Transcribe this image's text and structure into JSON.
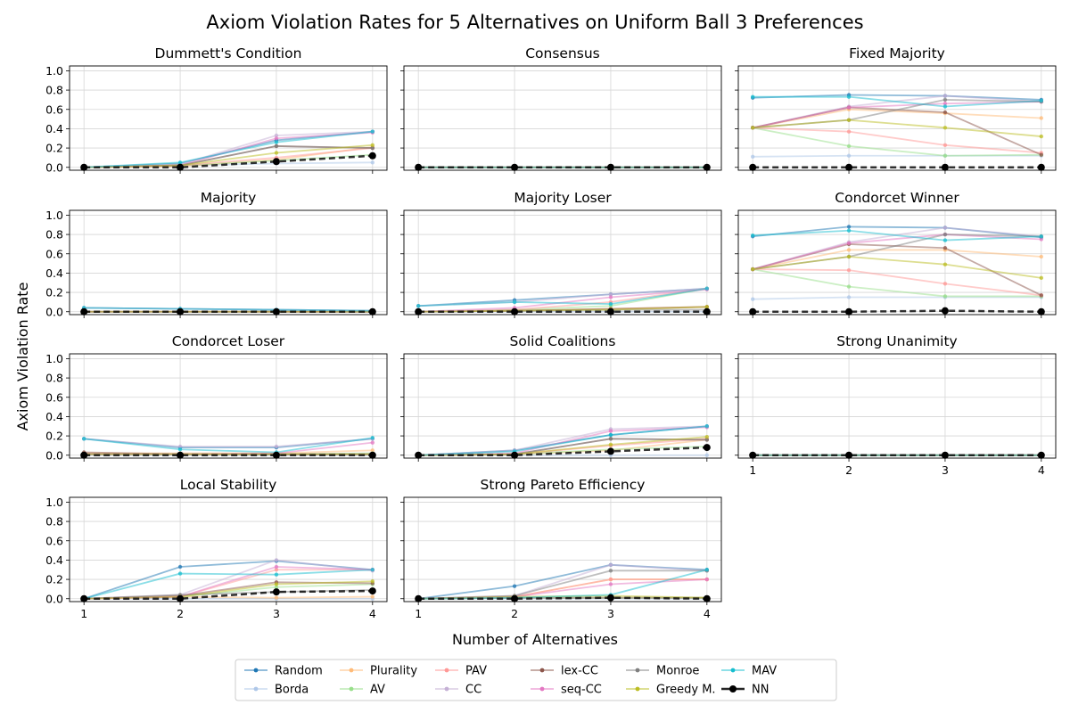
{
  "figure": {
    "title": "Axiom Violation Rates for 5 Alternatives on Uniform Ball 3 Preferences",
    "xlabel": "Number of Alternatives",
    "ylabel": "Axiom Violation Rate"
  },
  "legend": {
    "placement": "bottom-center",
    "entries": [
      {
        "name": "Random",
        "color": "#1f77b4",
        "dashed": false
      },
      {
        "name": "Borda",
        "color": "#aec7e8",
        "dashed": false
      },
      {
        "name": "Plurality",
        "color": "#ffbb78",
        "dashed": false
      },
      {
        "name": "AV",
        "color": "#98df8a",
        "dashed": false
      },
      {
        "name": "PAV",
        "color": "#ff9896",
        "dashed": false
      },
      {
        "name": "CC",
        "color": "#c5b0d5",
        "dashed": false
      },
      {
        "name": "lex-CC",
        "color": "#8c564b",
        "dashed": false
      },
      {
        "name": "seq-CC",
        "color": "#e377c2",
        "dashed": false
      },
      {
        "name": "Monroe",
        "color": "#7f7f7f",
        "dashed": false
      },
      {
        "name": "Greedy M.",
        "color": "#bcbd22",
        "dashed": false
      },
      {
        "name": "MAV",
        "color": "#17becf",
        "dashed": false
      },
      {
        "name": "NN",
        "color": "#000000",
        "dashed": true
      }
    ]
  },
  "chart_data": {
    "type": "line",
    "x": [
      1,
      2,
      3,
      4
    ],
    "xticks": [
      "1",
      "2",
      "3",
      "4"
    ],
    "ylim": [
      -0.03,
      1.05
    ],
    "yticks": [
      "0.0",
      "0.2",
      "0.4",
      "0.6",
      "0.8",
      "1.0"
    ],
    "grid": true,
    "panels": [
      {
        "title": "Dummett's Condition",
        "series": {
          "Random": [
            0.0,
            0.04,
            0.28,
            0.37
          ],
          "Borda": [
            0.0,
            0.02,
            0.04,
            0.05
          ],
          "Plurality": [
            0.0,
            0.01,
            0.08,
            0.21
          ],
          "AV": [
            0.0,
            0.02,
            0.07,
            0.13
          ],
          "PAV": [
            0.0,
            0.02,
            0.1,
            0.2
          ],
          "CC": [
            0.0,
            0.03,
            0.33,
            0.37
          ],
          "lex-CC": [
            0.0,
            0.02,
            0.22,
            0.2
          ],
          "seq-CC": [
            0.0,
            0.02,
            0.3,
            0.36
          ],
          "Monroe": [
            0.0,
            0.02,
            0.22,
            0.2
          ],
          "Greedy M.": [
            0.0,
            0.02,
            0.15,
            0.23
          ],
          "MAV": [
            0.0,
            0.05,
            0.26,
            0.37
          ],
          "NN": [
            0.0,
            0.0,
            0.06,
            0.12
          ]
        }
      },
      {
        "title": "Consensus",
        "series": {
          "Random": [
            0.0,
            0.0,
            0.0,
            0.0
          ],
          "Borda": [
            0.0,
            0.0,
            0.0,
            0.0
          ],
          "Plurality": [
            0.0,
            0.0,
            0.0,
            0.0
          ],
          "AV": [
            0.0,
            0.0,
            0.0,
            0.0
          ],
          "PAV": [
            0.0,
            0.0,
            0.0,
            0.0
          ],
          "CC": [
            0.0,
            0.0,
            0.0,
            0.0
          ],
          "lex-CC": [
            0.0,
            0.0,
            0.0,
            0.0
          ],
          "seq-CC": [
            0.0,
            0.0,
            0.0,
            0.0
          ],
          "Monroe": [
            0.0,
            0.0,
            0.0,
            0.0
          ],
          "Greedy M.": [
            0.0,
            0.0,
            0.0,
            0.0
          ],
          "MAV": [
            0.0,
            0.0,
            0.0,
            0.0
          ],
          "NN": [
            0.0,
            0.0,
            0.0,
            0.0
          ]
        }
      },
      {
        "title": "Fixed Majority",
        "series": {
          "Random": [
            0.72,
            0.75,
            0.74,
            0.7
          ],
          "Borda": [
            0.11,
            0.12,
            0.12,
            0.12
          ],
          "Plurality": [
            0.41,
            0.6,
            0.56,
            0.51
          ],
          "AV": [
            0.41,
            0.22,
            0.12,
            0.13
          ],
          "PAV": [
            0.41,
            0.37,
            0.23,
            0.15
          ],
          "CC": [
            0.41,
            0.63,
            0.74,
            0.68
          ],
          "lex-CC": [
            0.41,
            0.62,
            0.57,
            0.13
          ],
          "seq-CC": [
            0.41,
            0.62,
            0.66,
            0.68
          ],
          "Monroe": [
            0.41,
            0.49,
            0.7,
            0.68
          ],
          "Greedy M.": [
            0.41,
            0.49,
            0.41,
            0.32
          ],
          "MAV": [
            0.73,
            0.73,
            0.63,
            0.69
          ],
          "NN": [
            0.0,
            0.0,
            0.0,
            0.0
          ]
        }
      },
      {
        "title": "Majority",
        "series": {
          "Random": [
            0.04,
            0.03,
            0.02,
            0.01
          ],
          "Borda": [
            0.0,
            0.0,
            0.0,
            0.0
          ],
          "Plurality": [
            0.0,
            0.0,
            0.0,
            0.0
          ],
          "AV": [
            0.0,
            0.0,
            0.0,
            0.0
          ],
          "PAV": [
            0.0,
            0.0,
            0.0,
            0.0
          ],
          "CC": [
            0.04,
            0.03,
            0.02,
            0.01
          ],
          "lex-CC": [
            0.0,
            0.0,
            0.0,
            0.0
          ],
          "seq-CC": [
            0.0,
            0.0,
            0.0,
            0.0
          ],
          "Monroe": [
            0.0,
            0.0,
            0.0,
            0.0
          ],
          "Greedy M.": [
            0.0,
            0.0,
            0.0,
            0.0
          ],
          "MAV": [
            0.04,
            0.03,
            0.02,
            0.01
          ],
          "NN": [
            0.0,
            0.0,
            0.0,
            0.0
          ]
        }
      },
      {
        "title": "Majority Loser",
        "series": {
          "Random": [
            0.06,
            0.12,
            0.18,
            0.24
          ],
          "Borda": [
            0.0,
            0.0,
            0.0,
            0.0
          ],
          "Plurality": [
            0.0,
            0.01,
            0.03,
            0.05
          ],
          "AV": [
            0.0,
            0.02,
            0.06,
            0.24
          ],
          "PAV": [
            0.0,
            0.02,
            0.1,
            0.24
          ],
          "CC": [
            0.06,
            0.1,
            0.18,
            0.24
          ],
          "lex-CC": [
            0.0,
            0.01,
            0.03,
            0.05
          ],
          "seq-CC": [
            0.0,
            0.04,
            0.15,
            0.23
          ],
          "Monroe": [
            0.0,
            0.01,
            0.02,
            0.02
          ],
          "Greedy M.": [
            0.0,
            0.01,
            0.02,
            0.05
          ],
          "MAV": [
            0.06,
            0.1,
            0.08,
            0.24
          ],
          "NN": [
            0.0,
            0.0,
            0.0,
            0.0
          ]
        }
      },
      {
        "title": "Condorcet Winner",
        "series": {
          "Random": [
            0.78,
            0.88,
            0.87,
            0.77
          ],
          "Borda": [
            0.13,
            0.15,
            0.15,
            0.15
          ],
          "Plurality": [
            0.44,
            0.64,
            0.64,
            0.57
          ],
          "AV": [
            0.44,
            0.26,
            0.16,
            0.16
          ],
          "PAV": [
            0.44,
            0.43,
            0.29,
            0.17
          ],
          "CC": [
            0.44,
            0.72,
            0.87,
            0.78
          ],
          "lex-CC": [
            0.44,
            0.7,
            0.66,
            0.17
          ],
          "seq-CC": [
            0.44,
            0.71,
            0.8,
            0.75
          ],
          "Monroe": [
            0.44,
            0.57,
            0.8,
            0.78
          ],
          "Greedy M.": [
            0.44,
            0.57,
            0.49,
            0.35
          ],
          "MAV": [
            0.79,
            0.84,
            0.74,
            0.78
          ],
          "NN": [
            0.0,
            0.0,
            0.01,
            0.0
          ]
        }
      },
      {
        "title": "Condorcet Loser",
        "series": {
          "Random": [
            0.17,
            0.08,
            0.08,
            0.17
          ],
          "Borda": [
            0.0,
            0.0,
            0.0,
            0.0
          ],
          "Plurality": [
            0.02,
            0.02,
            0.02,
            0.05
          ],
          "AV": [
            0.01,
            0.01,
            0.01,
            0.02
          ],
          "PAV": [
            0.01,
            0.01,
            0.01,
            0.01
          ],
          "CC": [
            0.17,
            0.09,
            0.09,
            0.17
          ],
          "lex-CC": [
            0.03,
            0.01,
            0.01,
            0.01
          ],
          "seq-CC": [
            0.01,
            0.01,
            0.02,
            0.13
          ],
          "Monroe": [
            0.01,
            0.01,
            0.01,
            0.01
          ],
          "Greedy M.": [
            0.01,
            0.01,
            0.01,
            0.01
          ],
          "MAV": [
            0.17,
            0.06,
            0.03,
            0.18
          ],
          "NN": [
            0.0,
            0.0,
            0.0,
            0.0
          ]
        }
      },
      {
        "title": "Solid Coalitions",
        "series": {
          "Random": [
            0.0,
            0.05,
            0.21,
            0.3
          ],
          "Borda": [
            0.0,
            0.0,
            0.0,
            0.0
          ],
          "Plurality": [
            0.0,
            0.01,
            0.05,
            0.16
          ],
          "AV": [
            0.0,
            0.01,
            0.06,
            0.09
          ],
          "PAV": [
            0.0,
            0.01,
            0.1,
            0.17
          ],
          "CC": [
            0.0,
            0.05,
            0.27,
            0.3
          ],
          "lex-CC": [
            0.0,
            0.01,
            0.17,
            0.16
          ],
          "seq-CC": [
            0.0,
            0.02,
            0.25,
            0.29
          ],
          "Monroe": [
            0.0,
            0.01,
            0.17,
            0.16
          ],
          "Greedy M.": [
            0.0,
            0.01,
            0.11,
            0.19
          ],
          "MAV": [
            0.0,
            0.04,
            0.21,
            0.3
          ],
          "NN": [
            0.0,
            0.0,
            0.04,
            0.08
          ]
        }
      },
      {
        "title": "Strong Unanimity",
        "series": {
          "Random": [
            0.0,
            0.0,
            0.0,
            0.0
          ],
          "Borda": [
            0.0,
            0.0,
            0.0,
            0.0
          ],
          "Plurality": [
            0.0,
            0.0,
            0.0,
            0.0
          ],
          "AV": [
            0.0,
            0.0,
            0.0,
            0.0
          ],
          "PAV": [
            0.0,
            0.0,
            0.0,
            0.0
          ],
          "CC": [
            0.0,
            0.0,
            0.0,
            0.0
          ],
          "lex-CC": [
            0.0,
            0.0,
            0.0,
            0.0
          ],
          "seq-CC": [
            0.0,
            0.0,
            0.0,
            0.0
          ],
          "Monroe": [
            0.0,
            0.0,
            0.0,
            0.0
          ],
          "Greedy M.": [
            0.0,
            0.0,
            0.0,
            0.0
          ],
          "MAV": [
            0.0,
            0.0,
            0.0,
            0.0
          ],
          "NN": [
            0.0,
            0.0,
            0.0,
            0.0
          ]
        }
      },
      {
        "title": "Local Stability",
        "series": {
          "Random": [
            0.0,
            0.33,
            0.39,
            0.3
          ],
          "Borda": [
            0.0,
            0.0,
            0.0,
            0.0
          ],
          "Plurality": [
            0.0,
            0.02,
            0.01,
            0.02
          ],
          "AV": [
            0.0,
            0.02,
            0.12,
            0.15
          ],
          "PAV": [
            0.0,
            0.02,
            0.3,
            0.3
          ],
          "CC": [
            0.0,
            0.04,
            0.4,
            0.29
          ],
          "lex-CC": [
            0.0,
            0.03,
            0.17,
            0.16
          ],
          "seq-CC": [
            0.0,
            0.02,
            0.33,
            0.3
          ],
          "Monroe": [
            0.0,
            0.04,
            0.07,
            0.09
          ],
          "Greedy M.": [
            0.0,
            0.02,
            0.15,
            0.18
          ],
          "MAV": [
            0.0,
            0.26,
            0.25,
            0.3
          ],
          "NN": [
            0.0,
            0.0,
            0.07,
            0.08
          ]
        }
      },
      {
        "title": "Strong Pareto Efficiency",
        "series": {
          "Random": [
            0.0,
            0.13,
            0.35,
            0.3
          ],
          "Borda": [
            0.0,
            0.0,
            0.0,
            0.0
          ],
          "Plurality": [
            0.0,
            0.02,
            0.2,
            0.2
          ],
          "AV": [
            0.0,
            0.01,
            0.01,
            0.01
          ],
          "PAV": [
            0.0,
            0.02,
            0.2,
            0.2
          ],
          "CC": [
            0.0,
            0.03,
            0.35,
            0.29
          ],
          "lex-CC": [
            0.0,
            0.01,
            0.01,
            0.01
          ],
          "seq-CC": [
            0.0,
            0.02,
            0.15,
            0.2
          ],
          "Monroe": [
            0.0,
            0.03,
            0.29,
            0.29
          ],
          "Greedy M.": [
            0.0,
            0.02,
            0.03,
            0.01
          ],
          "MAV": [
            0.0,
            0.01,
            0.04,
            0.3
          ],
          "NN": [
            0.0,
            0.0,
            0.01,
            0.0
          ]
        }
      }
    ]
  }
}
